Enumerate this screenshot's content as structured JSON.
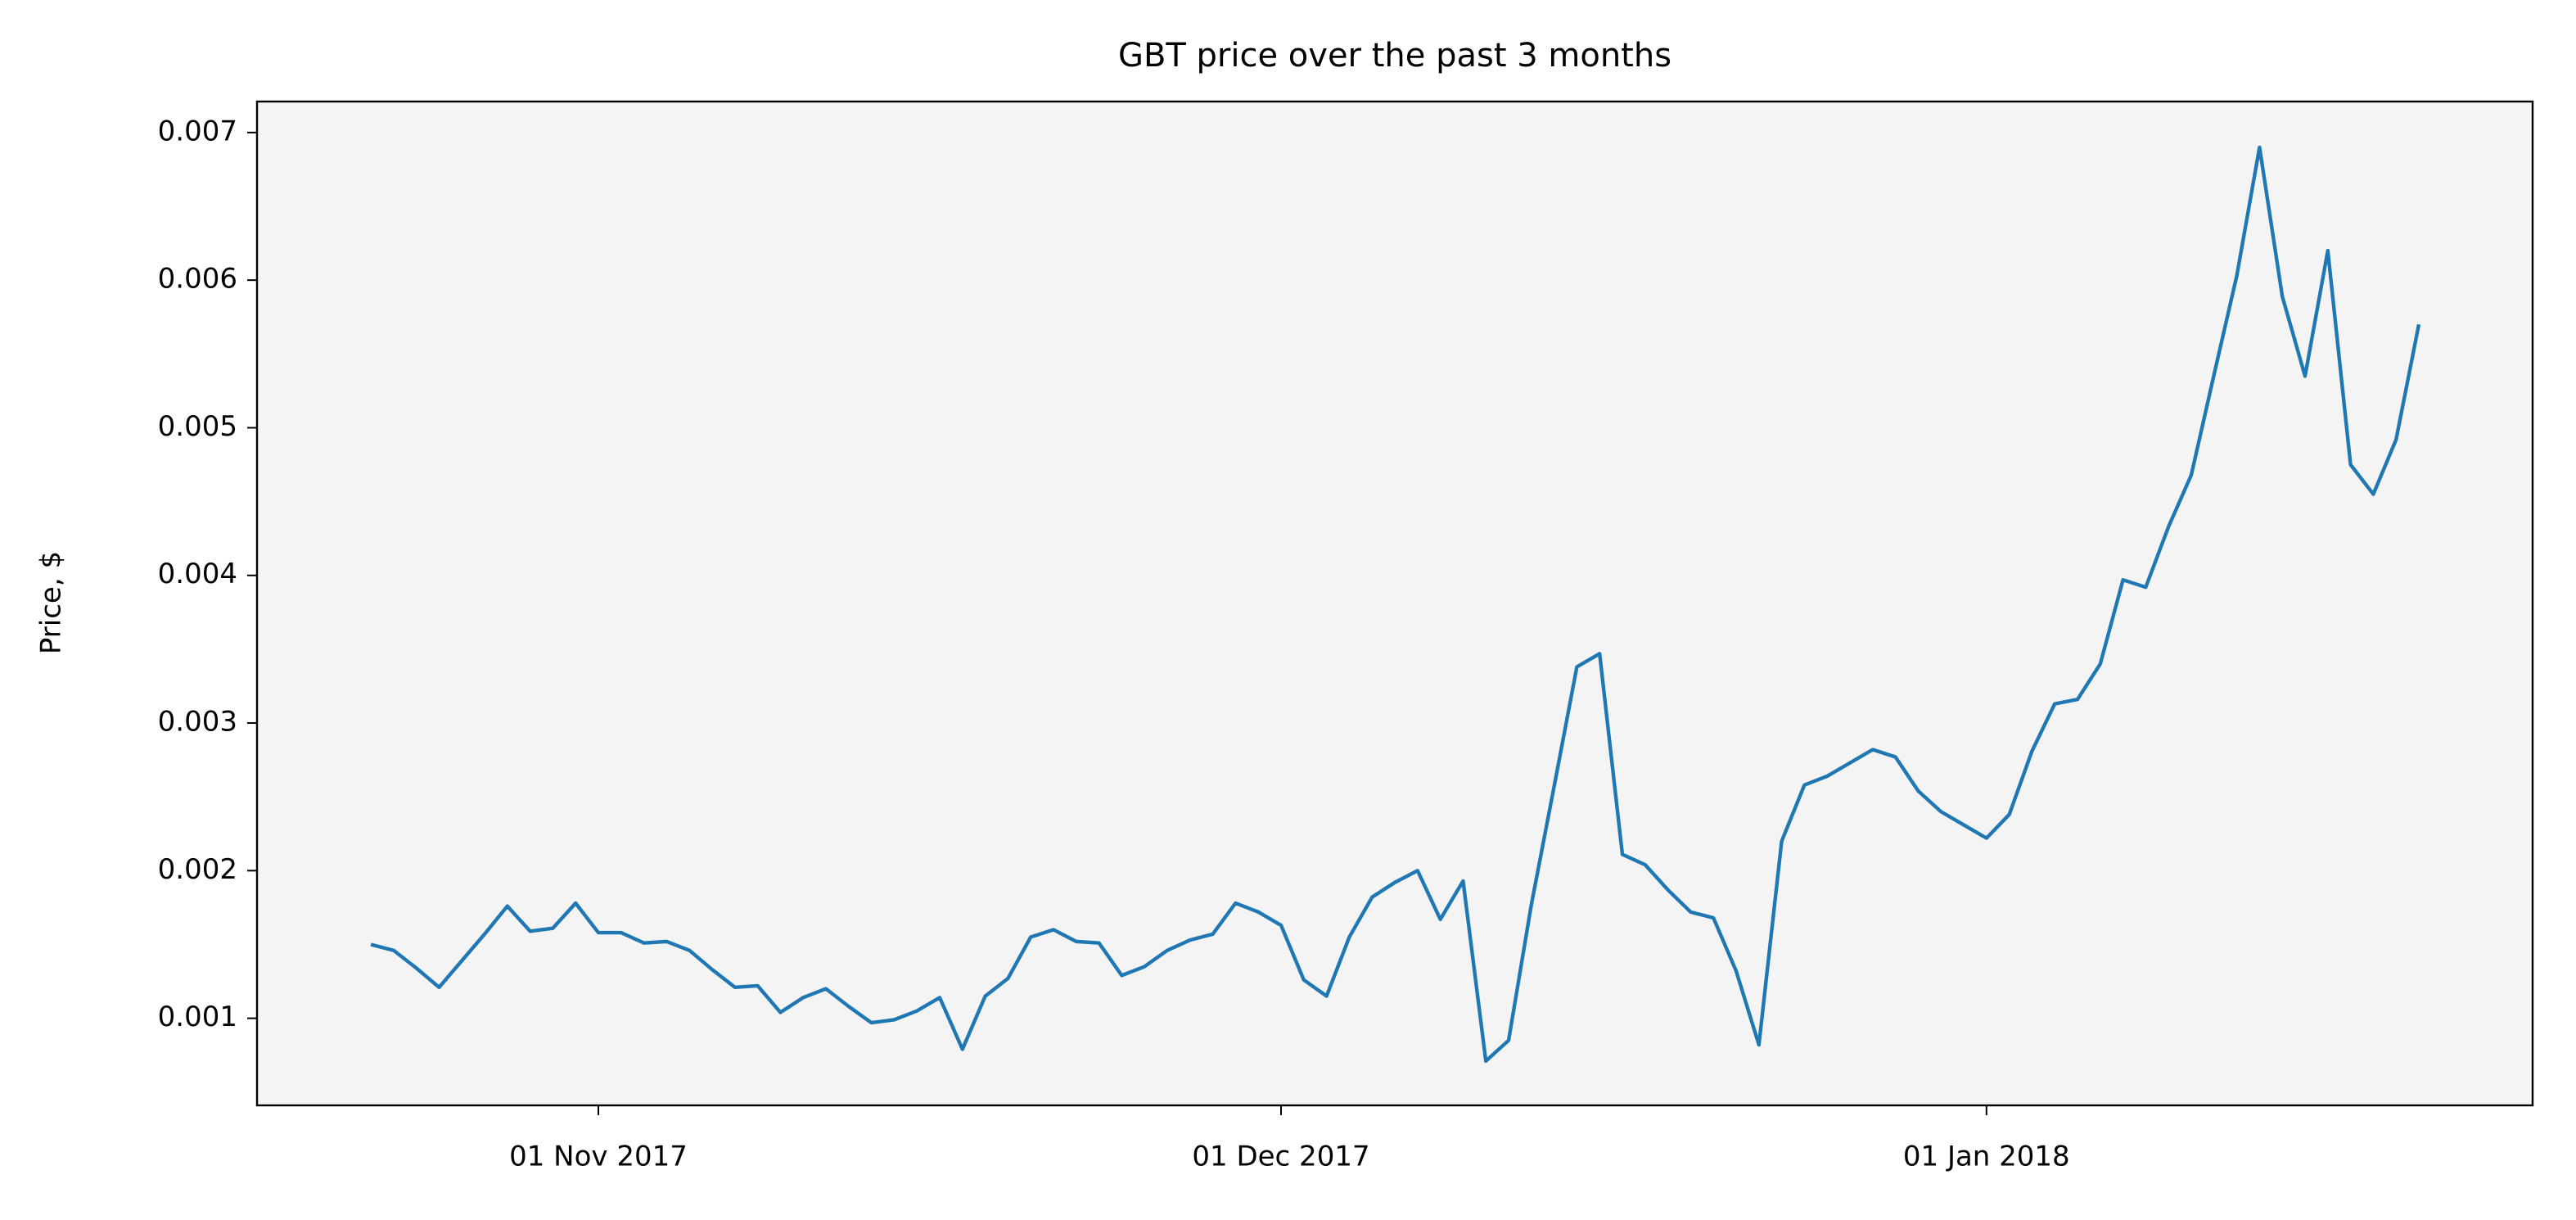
{
  "chart_data": {
    "type": "line",
    "title": "GBT price over the past 3 months",
    "y_label": "Price, $",
    "color": "#1f77b4",
    "background": "#f4f4f4",
    "x": [
      "2017-10-22",
      "2017-10-23",
      "2017-10-24",
      "2017-10-25",
      "2017-10-26",
      "2017-10-27",
      "2017-10-28",
      "2017-10-29",
      "2017-10-30",
      "2017-10-31",
      "2017-11-01",
      "2017-11-02",
      "2017-11-03",
      "2017-11-04",
      "2017-11-05",
      "2017-11-06",
      "2017-11-07",
      "2017-11-08",
      "2017-11-09",
      "2017-11-10",
      "2017-11-11",
      "2017-11-12",
      "2017-11-13",
      "2017-11-14",
      "2017-11-15",
      "2017-11-16",
      "2017-11-17",
      "2017-11-18",
      "2017-11-19",
      "2017-11-20",
      "2017-11-21",
      "2017-11-22",
      "2017-11-23",
      "2017-11-24",
      "2017-11-25",
      "2017-11-26",
      "2017-11-27",
      "2017-11-28",
      "2017-11-29",
      "2017-11-30",
      "2017-12-01",
      "2017-12-02",
      "2017-12-03",
      "2017-12-04",
      "2017-12-05",
      "2017-12-06",
      "2017-12-07",
      "2017-12-08",
      "2017-12-09",
      "2017-12-10",
      "2017-12-11",
      "2017-12-12",
      "2017-12-13",
      "2017-12-14",
      "2017-12-15",
      "2017-12-16",
      "2017-12-17",
      "2017-12-18",
      "2017-12-19",
      "2017-12-20",
      "2017-12-21",
      "2017-12-22",
      "2017-12-23",
      "2017-12-24",
      "2017-12-25",
      "2017-12-26",
      "2017-12-27",
      "2017-12-28",
      "2017-12-29",
      "2017-12-30",
      "2017-12-31",
      "2018-01-01",
      "2018-01-02",
      "2018-01-03",
      "2018-01-04",
      "2018-01-05",
      "2018-01-06",
      "2018-01-07",
      "2018-01-08",
      "2018-01-09",
      "2018-01-10",
      "2018-01-11",
      "2018-01-12",
      "2018-01-13",
      "2018-01-14",
      "2018-01-15",
      "2018-01-16",
      "2018-01-17",
      "2018-01-18",
      "2018-01-19",
      "2018-01-20"
    ],
    "values": [
      0.0015,
      0.00146,
      0.00134,
      0.00121,
      0.00139,
      0.00157,
      0.00176,
      0.00159,
      0.00161,
      0.00178,
      0.00158,
      0.00158,
      0.00151,
      0.00152,
      0.00146,
      0.00133,
      0.00121,
      0.00122,
      0.00104,
      0.00114,
      0.0012,
      0.00108,
      0.00097,
      0.00099,
      0.00105,
      0.00114,
      0.00079,
      0.00115,
      0.00127,
      0.00155,
      0.0016,
      0.00152,
      0.00151,
      0.00129,
      0.00135,
      0.00146,
      0.00153,
      0.00157,
      0.00178,
      0.00172,
      0.00163,
      0.00126,
      0.00115,
      0.00155,
      0.00182,
      0.00192,
      0.002,
      0.00167,
      0.00193,
      0.00071,
      0.00085,
      0.00177,
      0.00257,
      0.00338,
      0.00347,
      0.00211,
      0.00204,
      0.00187,
      0.00172,
      0.00168,
      0.00132,
      0.00082,
      0.0022,
      0.00258,
      0.00264,
      0.00273,
      0.00282,
      0.00277,
      0.00254,
      0.0024,
      0.00231,
      0.00222,
      0.00238,
      0.00281,
      0.00313,
      0.00316,
      0.0034,
      0.00397,
      0.00392,
      0.00433,
      0.00468,
      0.00536,
      0.00603,
      0.0069,
      0.00589,
      0.00535,
      0.0062,
      0.00475,
      0.00455,
      0.00492,
      0.0057
    ],
    "xlim": [
      "2017-10-17",
      "2018-01-25"
    ],
    "xticks": [
      {
        "value": "2017-11-01",
        "label": "01 Nov 2017"
      },
      {
        "value": "2017-12-01",
        "label": "01 Dec 2017"
      },
      {
        "value": "2018-01-01",
        "label": "01 Jan 2018"
      }
    ],
    "ylim": [
      0.00041,
      0.00721
    ],
    "yticks": [
      0.001,
      0.002,
      0.003,
      0.004,
      0.005,
      0.006,
      0.007
    ]
  }
}
